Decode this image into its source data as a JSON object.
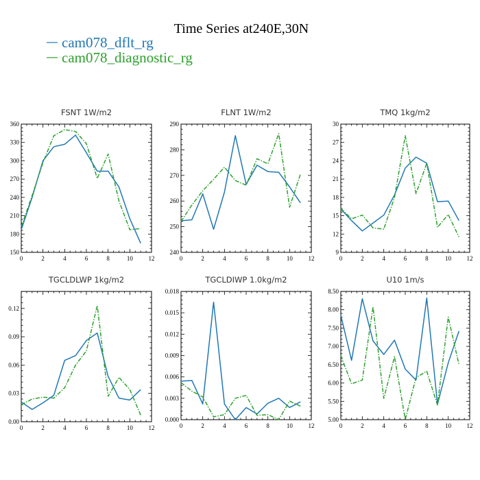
{
  "title": "Time Series at240E,30N",
  "legend": [
    {
      "label": "cam078_dflt_rg",
      "color": "#1f77b4",
      "dash": "solid"
    },
    {
      "label": "cam078_diagnostic_rg",
      "color": "#2ca02c",
      "dash": "dashdot"
    }
  ],
  "chart_data": [
    {
      "type": "line",
      "title": "FSNT   1W/m2",
      "x": [
        0,
        1,
        2,
        3,
        4,
        5,
        6,
        7,
        8,
        9,
        10,
        11
      ],
      "xlim": [
        0,
        12
      ],
      "xticks": [
        0,
        2,
        4,
        6,
        8,
        10,
        12
      ],
      "xtick_labels": [
        "0",
        "2",
        "4",
        "6",
        "8",
        "10",
        "12"
      ],
      "ylim": [
        150,
        360
      ],
      "yticks": [
        150,
        180,
        210,
        240,
        270,
        300,
        330,
        360
      ],
      "ytick_labels": [
        "150",
        "180",
        "210",
        "240",
        "270",
        "300",
        "330",
        "360"
      ],
      "series": [
        {
          "values": [
            187,
            240,
            300,
            323,
            327,
            342,
            313,
            283,
            283,
            257,
            205,
            165
          ]
        },
        {
          "values": [
            192,
            243,
            297,
            341,
            351,
            348,
            328,
            271,
            311,
            234,
            187,
            189
          ]
        }
      ]
    },
    {
      "type": "line",
      "title": "FLNT   1W/m2",
      "x": [
        0,
        1,
        2,
        3,
        4,
        5,
        6,
        7,
        8,
        9,
        10,
        11
      ],
      "xlim": [
        0,
        12
      ],
      "xticks": [
        0,
        2,
        4,
        6,
        8,
        10,
        12
      ],
      "xtick_labels": [
        "0",
        "2",
        "4",
        "6",
        "8",
        "10",
        "12"
      ],
      "ylim": [
        240,
        290
      ],
      "yticks": [
        240,
        250,
        260,
        270,
        280,
        290
      ],
      "ytick_labels": [
        "240",
        "250",
        "260",
        "270",
        "280",
        "290"
      ],
      "series": [
        {
          "values": [
            252.3,
            252.7,
            262.8,
            249.0,
            263.5,
            285.5,
            266.5,
            274.0,
            271.5,
            271.2,
            265.5,
            259.3
          ]
        },
        {
          "values": [
            252.0,
            258.5,
            264.0,
            268.5,
            273.2,
            268.0,
            266.2,
            276.5,
            274.5,
            286.3,
            257.6,
            270.5
          ]
        }
      ]
    },
    {
      "type": "line",
      "title": "TMQ   1kg/m2",
      "x": [
        0,
        1,
        2,
        3,
        4,
        5,
        6,
        7,
        8,
        9,
        10,
        11
      ],
      "xlim": [
        0,
        12
      ],
      "xticks": [
        0,
        2,
        4,
        6,
        8,
        10,
        12
      ],
      "xtick_labels": [
        "0",
        "2",
        "4",
        "6",
        "8",
        "10",
        "12"
      ],
      "ylim": [
        9,
        30
      ],
      "yticks": [
        9,
        12,
        15,
        18,
        21,
        24,
        27,
        30
      ],
      "ytick_labels": [
        "9",
        "12",
        "15",
        "18",
        "21",
        "24",
        "27",
        "30"
      ],
      "series": [
        {
          "values": [
            16.1,
            14.2,
            12.5,
            13.8,
            15.1,
            18.4,
            22.8,
            24.6,
            23.6,
            17.3,
            17.4,
            14.2
          ]
        },
        {
          "values": [
            16.2,
            14.5,
            15.1,
            13.0,
            12.8,
            18.0,
            28.1,
            18.6,
            23.6,
            13.1,
            15.2,
            11.5
          ]
        }
      ]
    },
    {
      "type": "line",
      "title": "TGCLDLWP   1kg/m2",
      "x": [
        0,
        1,
        2,
        3,
        4,
        5,
        6,
        7,
        8,
        9,
        10,
        11
      ],
      "xlim": [
        0,
        12
      ],
      "xticks": [
        0,
        2,
        4,
        6,
        8,
        10,
        12
      ],
      "xtick_labels": [
        "0",
        "2",
        "4",
        "6",
        "8",
        "10",
        "12"
      ],
      "ylim": [
        0,
        0.138
      ],
      "yticks": [
        0,
        0.03,
        0.06,
        0.09,
        0.12
      ],
      "ytick_labels": [
        "0.00",
        "0.03",
        "0.06",
        "0.09",
        "0.12"
      ],
      "series": [
        {
          "values": [
            0.021,
            0.013,
            0.02,
            0.028,
            0.065,
            0.07,
            0.086,
            0.094,
            0.048,
            0.025,
            0.023,
            0.034
          ]
        },
        {
          "values": [
            0.018,
            0.024,
            0.026,
            0.025,
            0.036,
            0.06,
            0.075,
            0.123,
            0.027,
            0.047,
            0.034,
            0.007
          ]
        }
      ]
    },
    {
      "type": "line",
      "title": "TGCLDIWP   1.0kg/m2",
      "x": [
        0,
        1,
        2,
        3,
        4,
        5,
        6,
        7,
        8,
        9,
        10,
        11
      ],
      "xlim": [
        0,
        12
      ],
      "xticks": [
        0,
        2,
        4,
        6,
        8,
        10,
        12
      ],
      "xtick_labels": [
        "0",
        "2",
        "4",
        "6",
        "8",
        "10",
        "12"
      ],
      "ylim": [
        0,
        0.018
      ],
      "yticks": [
        0,
        0.003,
        0.006,
        0.009,
        0.012,
        0.015,
        0.018
      ],
      "ytick_labels": [
        "0.000",
        "0.003",
        "0.006",
        "0.009",
        "0.012",
        "0.015",
        "0.018"
      ],
      "series": [
        {
          "values": [
            0.0054,
            0.0055,
            0.0022,
            0.0165,
            0.0022,
            0.0,
            0.0017,
            0.0008,
            0.0023,
            0.003,
            0.0017,
            0.0025
          ]
        },
        {
          "values": [
            0.0052,
            0.004,
            0.0032,
            0.0004,
            0.0007,
            0.003,
            0.0034,
            0.0006,
            0.0007,
            0.0,
            0.0026,
            0.0019
          ]
        }
      ]
    },
    {
      "type": "line",
      "title": "U10   1m/s",
      "x": [
        0,
        1,
        2,
        3,
        4,
        5,
        6,
        7,
        8,
        9,
        10,
        11
      ],
      "xlim": [
        0,
        12
      ],
      "xticks": [
        0,
        2,
        4,
        6,
        8,
        10,
        12
      ],
      "xtick_labels": [
        "0",
        "2",
        "4",
        "6",
        "8",
        "10",
        "12"
      ],
      "ylim": [
        5.0,
        8.5
      ],
      "yticks": [
        5.0,
        5.5,
        6.0,
        6.5,
        7.0,
        7.5,
        8.0,
        8.5
      ],
      "ytick_labels": [
        "5.00",
        "5.50",
        "6.00",
        "6.50",
        "7.00",
        "7.50",
        "8.00",
        "8.50"
      ],
      "series": [
        {
          "values": [
            7.85,
            6.62,
            8.3,
            7.15,
            6.78,
            7.17,
            6.38,
            6.08,
            8.32,
            5.42,
            6.55,
            7.42
          ]
        },
        {
          "values": [
            6.75,
            5.98,
            6.08,
            8.08,
            5.58,
            6.72,
            5.0,
            6.15,
            6.32,
            5.4,
            7.8,
            6.5
          ]
        }
      ]
    }
  ]
}
